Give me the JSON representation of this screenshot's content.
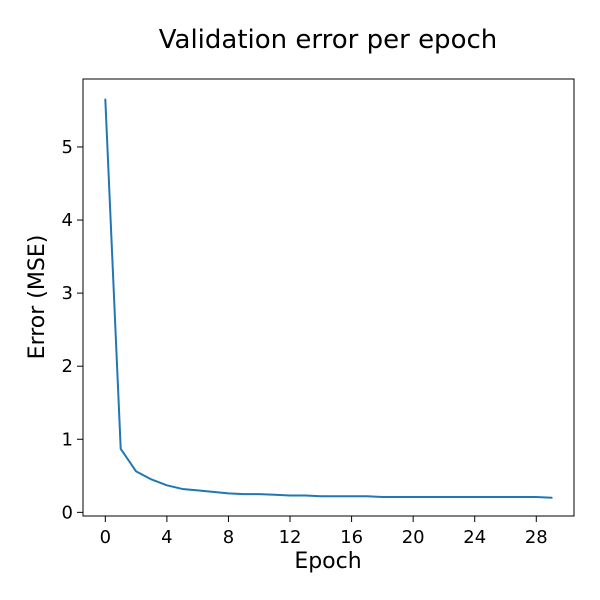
{
  "chart_data": {
    "type": "line",
    "title": "Validation error per epoch",
    "xlabel": "Epoch",
    "ylabel": "Error (MSE)",
    "xlim": [
      -1.45,
      30.45
    ],
    "ylim": [
      -0.05,
      5.93
    ],
    "xticks": [
      0,
      4,
      8,
      12,
      16,
      20,
      24,
      28
    ],
    "yticks": [
      0,
      1,
      2,
      3,
      4,
      5
    ],
    "grid": false,
    "colors": {
      "line": "#1f77b4",
      "axes": "#000000",
      "background": "#ffffff"
    },
    "series": [
      {
        "x": [
          0,
          1,
          2,
          3,
          4,
          5,
          6,
          7,
          8,
          9,
          10,
          11,
          12,
          13,
          14,
          15,
          16,
          17,
          18,
          19,
          20,
          21,
          22,
          23,
          24,
          25,
          26,
          27,
          28,
          29
        ],
        "values": [
          5.65,
          0.87,
          0.56,
          0.45,
          0.37,
          0.32,
          0.3,
          0.28,
          0.26,
          0.25,
          0.25,
          0.24,
          0.23,
          0.23,
          0.22,
          0.22,
          0.22,
          0.22,
          0.21,
          0.21,
          0.21,
          0.21,
          0.21,
          0.21,
          0.21,
          0.21,
          0.21,
          0.21,
          0.21,
          0.2
        ]
      }
    ]
  }
}
